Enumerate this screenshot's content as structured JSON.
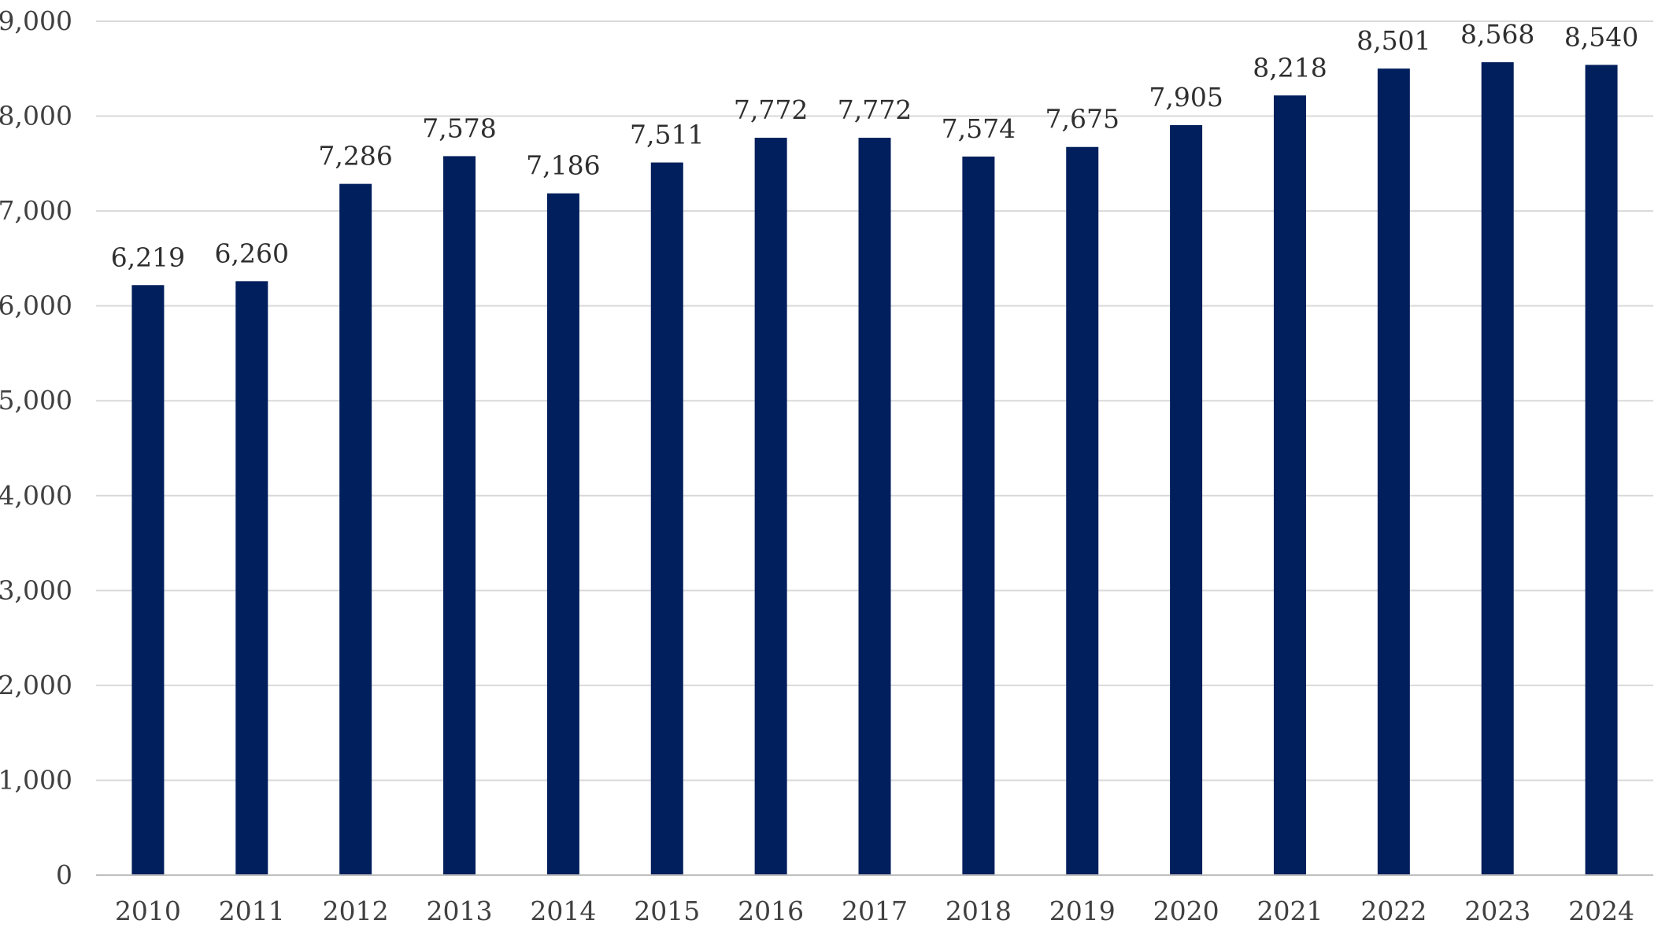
{
  "chart_data": {
    "type": "bar",
    "title": "",
    "xlabel": "",
    "ylabel": "",
    "categories": [
      "2010",
      "2011",
      "2012",
      "2013",
      "2014",
      "2015",
      "2016",
      "2017",
      "2018",
      "2019",
      "2020",
      "2021",
      "2022",
      "2023",
      "2024"
    ],
    "values": [
      6219,
      6260,
      7286,
      7578,
      7186,
      7511,
      7772,
      7772,
      7574,
      7675,
      7905,
      8218,
      8501,
      8568,
      8540
    ],
    "data_labels": [
      "6,219",
      "6,260",
      "7,286",
      "7,578",
      "7,186",
      "7,511",
      "7,772",
      "7,772",
      "7,574",
      "7,675",
      "7,905",
      "8,218",
      "8,501",
      "8,568",
      "8,540"
    ],
    "ylim": [
      0,
      9000
    ],
    "y_ticks": [
      0,
      1000,
      2000,
      3000,
      4000,
      5000,
      6000,
      7000,
      8000,
      9000
    ],
    "y_tick_labels": [
      "0",
      "1,000",
      "2,000",
      "3,000",
      "4,000",
      "5,000",
      "6,000",
      "7,000",
      "8,000",
      "9,000"
    ],
    "grid": true,
    "legend": "none",
    "bar_color": "#001f5c"
  }
}
